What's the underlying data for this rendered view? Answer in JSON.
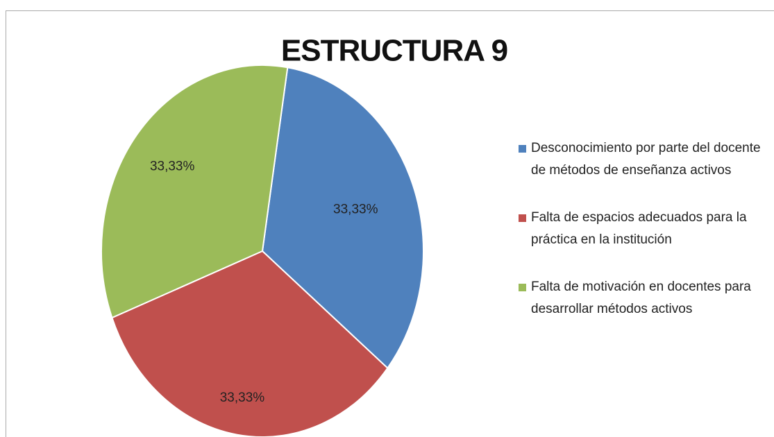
{
  "chart_data": {
    "type": "pie",
    "title": "ESTRUCTURA 9",
    "categories": [
      "Desconocimiento por parte del docente de métodos de enseñanza activos",
      "Falta de espacios adecuados para la práctica en la institución",
      "Falta de motivación en docentes para desarrollar métodos activos"
    ],
    "values": [
      33.33,
      33.33,
      33.33
    ],
    "value_labels": [
      "33,33%",
      "33,33%",
      "33,33%"
    ],
    "colors": [
      "#4f81bd",
      "#c0504d",
      "#9bbb59"
    ],
    "legend": "right"
  }
}
